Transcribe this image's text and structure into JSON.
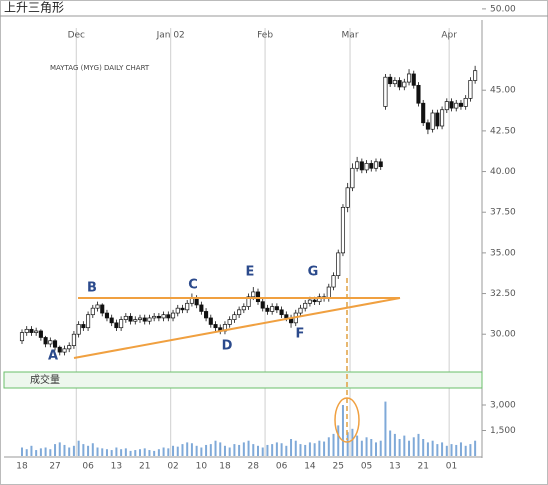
{
  "title": "上升三角形",
  "chart_data": {
    "type": "candlestick",
    "subtitle": "MAYTAG (MYG) DAILY CHART",
    "annotations": [
      "A",
      "B",
      "C",
      "D",
      "E",
      "F",
      "G"
    ],
    "categories": [
      "18",
      null,
      null,
      null,
      null,
      null,
      null,
      "27",
      null,
      null,
      null,
      null,
      null,
      null,
      "06",
      null,
      null,
      null,
      null,
      null,
      "13",
      null,
      null,
      null,
      null,
      null,
      "21",
      null,
      null,
      null,
      null,
      null,
      "02",
      null,
      null,
      null,
      null,
      null,
      "10",
      null,
      null,
      null,
      null,
      "18",
      null,
      null,
      null,
      null,
      null,
      "28",
      null,
      null,
      null,
      null,
      null,
      "06",
      null,
      null,
      null,
      null,
      null,
      "14",
      null,
      null,
      null,
      null,
      null,
      "25",
      null,
      null,
      null,
      null,
      null,
      "05",
      null,
      null,
      null,
      null,
      null,
      "13",
      null,
      null,
      null,
      null,
      null,
      "21",
      null,
      null,
      null,
      null,
      null,
      "01",
      null,
      null,
      null,
      null,
      null
    ],
    "month_categories": [
      null,
      null,
      null,
      null,
      null,
      null,
      null,
      null,
      null,
      null,
      null,
      null,
      "Dec",
      null,
      null,
      null,
      null,
      null,
      null,
      null,
      null,
      null,
      null,
      null,
      null,
      null,
      null,
      null,
      null,
      null,
      null,
      null,
      "Jan 02",
      null,
      null,
      null,
      null,
      null,
      null,
      null,
      null,
      null,
      null,
      null,
      null,
      null,
      null,
      null,
      null,
      null,
      null,
      null,
      "Feb",
      null,
      null,
      null,
      null,
      null,
      null,
      null,
      null,
      null,
      null,
      null,
      null,
      null,
      null,
      null,
      null,
      null,
      "Mar",
      null,
      null,
      null,
      null,
      null,
      null,
      null,
      null,
      null,
      null,
      null,
      null,
      null,
      null,
      null,
      null,
      null,
      null,
      null,
      null,
      "Apr",
      null,
      null,
      null,
      null,
      null
    ],
    "open": [
      29.6,
      30.1,
      30.3,
      30.1,
      30.2,
      29.8,
      29.4,
      29.6,
      29.2,
      28.9,
      29.1,
      29.3,
      30.0,
      30.6,
      30.4,
      31.2,
      31.6,
      31.8,
      31.3,
      31.0,
      30.7,
      30.4,
      30.9,
      31.1,
      30.8,
      30.9,
      31.0,
      30.8,
      31.0,
      31.1,
      31.0,
      31.2,
      31.0,
      31.3,
      31.6,
      31.5,
      31.9,
      32.2,
      31.8,
      31.4,
      31.0,
      30.6,
      30.4,
      30.2,
      30.6,
      30.9,
      31.2,
      31.5,
      31.7,
      32.3,
      32.6,
      32.0,
      31.6,
      31.4,
      31.7,
      31.5,
      31.2,
      31.0,
      30.7,
      31.3,
      31.6,
      31.9,
      32.1,
      32.0,
      32.3,
      32.2,
      32.9,
      33.6,
      35.0,
      37.8,
      39.0,
      40.2,
      40.6,
      40.1,
      40.5,
      40.2,
      40.6,
      44.0,
      45.8,
      45.4,
      45.6,
      45.2,
      45.5,
      46.0,
      45.3,
      44.2,
      43.0,
      42.6,
      43.6,
      42.8,
      43.8,
      44.3,
      43.9,
      44.2,
      44.0,
      44.5,
      45.6
    ],
    "high": [
      30.3,
      30.5,
      30.5,
      30.4,
      30.3,
      29.9,
      29.8,
      29.7,
      29.3,
      29.3,
      29.5,
      30.2,
      30.8,
      30.8,
      31.4,
      31.8,
      32.0,
      31.9,
      31.5,
      31.2,
      30.9,
      31.1,
      31.3,
      31.3,
      31.1,
      31.2,
      31.2,
      31.2,
      31.3,
      31.3,
      31.4,
      31.4,
      31.5,
      31.8,
      31.8,
      32.1,
      32.5,
      32.4,
      32.0,
      31.6,
      31.2,
      30.8,
      30.6,
      30.8,
      31.1,
      31.4,
      31.7,
      31.9,
      32.5,
      32.9,
      32.8,
      32.2,
      31.8,
      31.9,
      31.9,
      31.7,
      31.4,
      31.2,
      31.5,
      31.8,
      32.1,
      32.3,
      32.3,
      32.5,
      32.5,
      33.1,
      33.8,
      35.2,
      38.0,
      39.3,
      40.5,
      40.9,
      40.8,
      40.7,
      40.7,
      40.8,
      40.8,
      46.0,
      46.0,
      45.8,
      45.8,
      45.7,
      46.3,
      46.2,
      45.5,
      44.4,
      43.2,
      43.8,
      43.8,
      44.0,
      44.5,
      44.5,
      44.4,
      44.4,
      44.7,
      45.8,
      46.5
    ],
    "low": [
      29.4,
      29.9,
      29.9,
      29.9,
      29.6,
      29.2,
      29.2,
      29.0,
      28.7,
      28.7,
      28.9,
      29.1,
      29.8,
      30.2,
      30.2,
      31.0,
      31.4,
      31.1,
      30.8,
      30.5,
      30.2,
      30.2,
      30.7,
      30.6,
      30.6,
      30.7,
      30.6,
      30.6,
      30.8,
      30.8,
      30.8,
      30.8,
      30.8,
      31.1,
      31.3,
      31.3,
      31.7,
      31.6,
      31.2,
      30.8,
      30.4,
      30.2,
      30.0,
      30.0,
      30.4,
      30.7,
      31.0,
      31.3,
      31.5,
      32.1,
      31.8,
      31.4,
      31.2,
      31.2,
      31.3,
      31.0,
      30.8,
      30.4,
      30.5,
      31.1,
      31.4,
      31.7,
      31.8,
      31.8,
      32.0,
      32.0,
      32.7,
      33.4,
      34.8,
      37.5,
      38.8,
      40.0,
      39.9,
      39.9,
      40.0,
      40.0,
      40.1,
      43.8,
      45.2,
      45.2,
      45.0,
      45.0,
      45.3,
      45.1,
      44.0,
      42.8,
      42.3,
      42.4,
      42.6,
      42.6,
      43.6,
      43.7,
      43.7,
      43.8,
      43.8,
      44.3,
      45.4
    ],
    "close": [
      30.1,
      30.3,
      30.1,
      30.2,
      29.8,
      29.4,
      29.6,
      29.2,
      28.9,
      29.1,
      29.3,
      30.0,
      30.6,
      30.4,
      31.2,
      31.6,
      31.8,
      31.3,
      31.0,
      30.7,
      30.4,
      30.9,
      31.1,
      30.8,
      30.9,
      31.0,
      30.8,
      31.0,
      31.1,
      31.0,
      31.2,
      31.0,
      31.3,
      31.6,
      31.5,
      31.9,
      32.2,
      31.8,
      31.4,
      31.0,
      30.6,
      30.4,
      30.2,
      30.6,
      30.9,
      31.2,
      31.5,
      31.7,
      32.3,
      32.6,
      32.0,
      31.6,
      31.4,
      31.7,
      31.5,
      31.2,
      31.0,
      30.7,
      31.3,
      31.6,
      31.9,
      32.1,
      32.0,
      32.3,
      32.2,
      32.9,
      33.6,
      35.0,
      37.8,
      39.0,
      40.2,
      40.6,
      40.1,
      40.5,
      40.2,
      40.6,
      40.3,
      45.8,
      45.4,
      45.6,
      45.2,
      45.5,
      46.0,
      45.3,
      44.2,
      43.0,
      42.6,
      43.6,
      42.8,
      43.8,
      44.3,
      43.9,
      44.2,
      44.0,
      44.5,
      45.6,
      46.2
    ],
    "up_color": "#ffffff",
    "down_color": "#111111",
    "ylim": [
      27.8,
      50.3
    ],
    "yticks": [
      {
        "value": 50,
        "label": "50.00"
      },
      {
        "value": 45,
        "label": "45.00"
      },
      {
        "value": 42.5,
        "label": "42.50"
      },
      {
        "value": 40,
        "label": "40.00"
      },
      {
        "value": 37.5,
        "label": "37.50"
      },
      {
        "value": 35,
        "label": "35.00"
      },
      {
        "value": 32.5,
        "label": "32.50"
      },
      {
        "value": 30,
        "label": "30.00"
      }
    ],
    "volume": {
      "label": "成交量",
      "color": "#7fa9d8",
      "values": [
        500,
        400,
        600,
        350,
        450,
        500,
        400,
        700,
        800,
        650,
        500,
        600,
        900,
        700,
        600,
        750,
        500,
        450,
        400,
        350,
        500,
        400,
        450,
        300,
        350,
        400,
        450,
        350,
        300,
        400,
        500,
        450,
        600,
        550,
        700,
        800,
        750,
        600,
        500,
        650,
        700,
        900,
        800,
        600,
        500,
        700,
        650,
        800,
        900,
        700,
        600,
        500,
        650,
        700,
        800,
        750,
        600,
        1000,
        900,
        700,
        650,
        800,
        750,
        900,
        850,
        1100,
        1300,
        1800,
        3000,
        1400,
        1600,
        1200,
        900,
        1100,
        1000,
        800,
        900,
        3200,
        1500,
        1300,
        1000,
        1200,
        900,
        1100,
        1300,
        1000,
        800,
        900,
        700,
        800,
        600,
        700,
        650,
        800,
        600,
        700,
        900
      ],
      "ylim": [
        0,
        4000
      ],
      "yticks": [
        {
          "value": 3000,
          "label": "3,000"
        },
        {
          "value": 1500,
          "label": "1,500"
        }
      ]
    }
  }
}
